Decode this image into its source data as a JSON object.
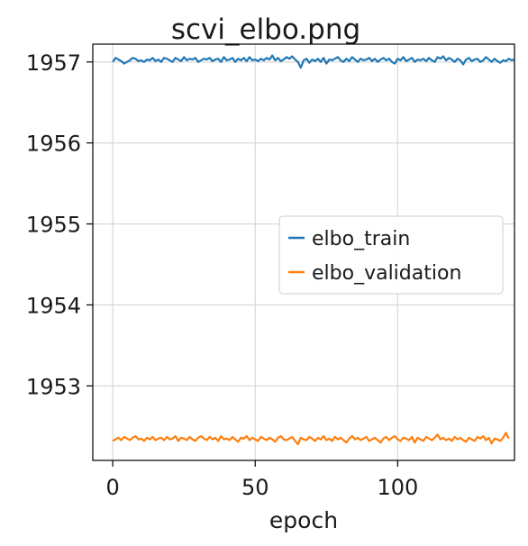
{
  "chart_data": {
    "type": "line",
    "title": "scvi_elbo.png",
    "xlabel": "epoch",
    "ylabel": "",
    "xlim": [
      -7,
      141
    ],
    "ylim": [
      1952.08,
      1957.22
    ],
    "xticks": [
      0,
      50,
      100
    ],
    "yticks": [
      1953,
      1954,
      1955,
      1956,
      1957
    ],
    "grid": true,
    "legend_position": "center-right",
    "series": [
      {
        "name": "elbo_train",
        "color": "#1f77b4",
        "x_start": 0,
        "x_step": 1,
        "values": [
          1957.0,
          1957.05,
          1957.03,
          1957.01,
          1956.98,
          1957.0,
          1957.02,
          1957.05,
          1957.04,
          1957.01,
          1957.02,
          1957.0,
          1957.03,
          1957.02,
          1957.05,
          1957.01,
          1957.03,
          1957.0,
          1957.05,
          1957.04,
          1957.02,
          1957.0,
          1957.05,
          1957.03,
          1957.01,
          1957.06,
          1957.02,
          1957.04,
          1957.03,
          1957.05,
          1957.0,
          1957.02,
          1957.04,
          1957.03,
          1957.05,
          1957.01,
          1957.03,
          1957.04,
          1957.0,
          1957.06,
          1957.02,
          1957.03,
          1957.05,
          1957.0,
          1957.04,
          1957.02,
          1957.05,
          1957.01,
          1957.06,
          1957.02,
          1957.03,
          1957.01,
          1957.04,
          1957.02,
          1957.05,
          1957.03,
          1957.08,
          1957.02,
          1957.05,
          1957.01,
          1957.03,
          1957.06,
          1957.04,
          1957.07,
          1957.03,
          1957.0,
          1956.93,
          1957.02,
          1957.04,
          1956.99,
          1957.03,
          1957.01,
          1957.04,
          1957.0,
          1957.05,
          1956.98,
          1957.03,
          1957.02,
          1957.04,
          1957.06,
          1957.02,
          1957.0,
          1957.04,
          1957.01,
          1957.06,
          1957.03,
          1957.0,
          1957.04,
          1957.02,
          1957.03,
          1957.05,
          1957.01,
          1957.04,
          1957.0,
          1957.03,
          1957.05,
          1957.02,
          1957.04,
          1957.0,
          1956.98,
          1957.04,
          1957.02,
          1957.06,
          1957.01,
          1957.03,
          1957.05,
          1957.0,
          1957.03,
          1957.02,
          1957.04,
          1957.01,
          1957.05,
          1957.02,
          1957.0,
          1957.06,
          1957.04,
          1957.07,
          1957.02,
          1957.05,
          1957.03,
          1957.0,
          1957.04,
          1957.02,
          1956.97,
          1957.03,
          1957.05,
          1957.01,
          1957.03,
          1957.04,
          1957.0,
          1957.02,
          1957.06,
          1957.03,
          1957.0,
          1957.04,
          1957.01,
          1956.99,
          1957.02,
          1957.01,
          1957.04,
          1957.02,
          1957.03
        ]
      },
      {
        "name": "elbo_validation",
        "color": "#ff7f0e",
        "x_start": 0,
        "x_step": 1,
        "values": [
          1952.32,
          1952.34,
          1952.36,
          1952.33,
          1952.37,
          1952.35,
          1952.33,
          1952.36,
          1952.38,
          1952.34,
          1952.35,
          1952.32,
          1952.36,
          1952.34,
          1952.37,
          1952.33,
          1952.35,
          1952.36,
          1952.33,
          1952.37,
          1952.34,
          1952.35,
          1952.38,
          1952.32,
          1952.36,
          1952.35,
          1952.33,
          1952.37,
          1952.34,
          1952.32,
          1952.36,
          1952.38,
          1952.35,
          1952.33,
          1952.37,
          1952.34,
          1952.36,
          1952.32,
          1952.38,
          1952.34,
          1952.35,
          1952.33,
          1952.37,
          1952.34,
          1952.31,
          1952.36,
          1952.35,
          1952.38,
          1952.33,
          1952.36,
          1952.34,
          1952.32,
          1952.37,
          1952.35,
          1952.33,
          1952.36,
          1952.34,
          1952.31,
          1952.36,
          1952.38,
          1952.34,
          1952.33,
          1952.35,
          1952.37,
          1952.32,
          1952.28,
          1952.36,
          1952.34,
          1952.33,
          1952.37,
          1952.35,
          1952.32,
          1952.36,
          1952.34,
          1952.38,
          1952.33,
          1952.35,
          1952.32,
          1952.37,
          1952.34,
          1952.36,
          1952.33,
          1952.3,
          1952.35,
          1952.38,
          1952.34,
          1952.36,
          1952.33,
          1952.35,
          1952.37,
          1952.32,
          1952.34,
          1952.36,
          1952.33,
          1952.3,
          1952.35,
          1952.37,
          1952.33,
          1952.36,
          1952.38,
          1952.34,
          1952.32,
          1952.36,
          1952.35,
          1952.33,
          1952.37,
          1952.3,
          1952.36,
          1952.34,
          1952.32,
          1952.37,
          1952.35,
          1952.33,
          1952.36,
          1952.4,
          1952.34,
          1952.36,
          1952.33,
          1952.35,
          1952.32,
          1952.37,
          1952.34,
          1952.36,
          1952.33,
          1952.31,
          1952.36,
          1952.34,
          1952.32,
          1952.37,
          1952.35,
          1952.38,
          1952.33,
          1952.36,
          1952.29,
          1952.35,
          1952.34,
          1952.32,
          1952.36,
          1952.42,
          1952.35
        ]
      }
    ]
  }
}
